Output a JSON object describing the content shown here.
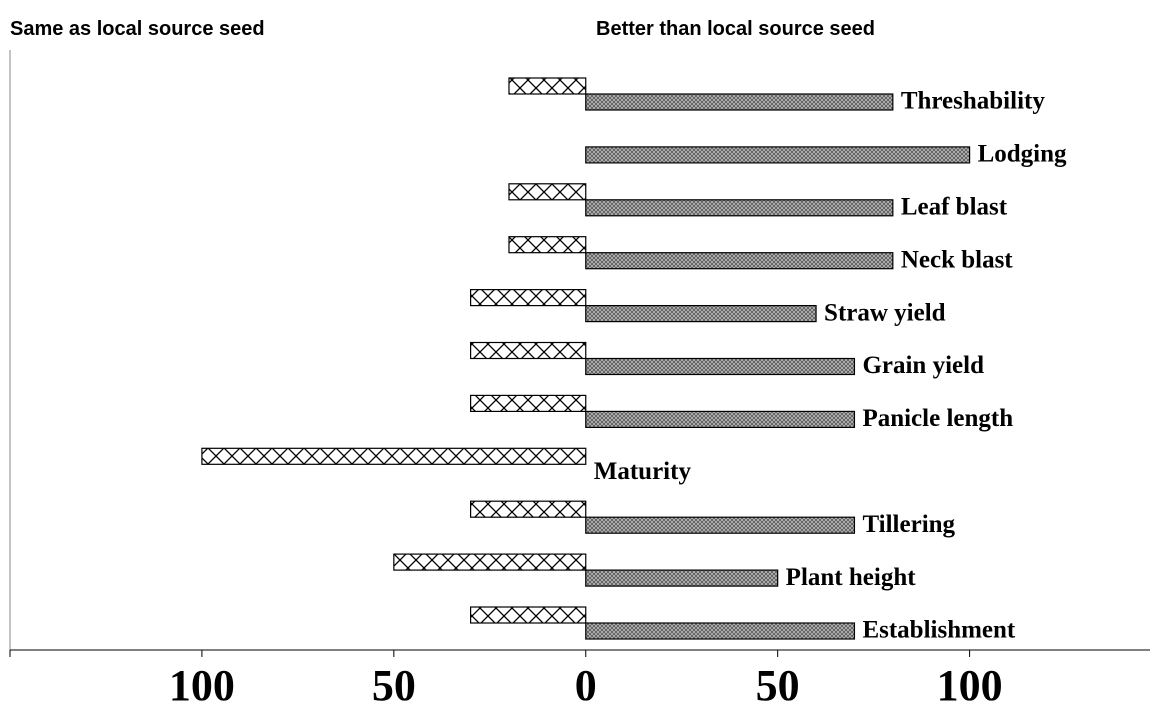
{
  "chart_data": {
    "type": "diverging_bar",
    "categories": [
      "Threshability",
      "Lodging",
      "Leaf blast",
      "Neck blast",
      "Straw yield",
      "Grain yield",
      "Panicle length",
      "Maturity",
      "Tillering",
      "Plant height",
      "Establishment"
    ],
    "series": [
      {
        "name": "Same as local source seed",
        "color": "#ffffff",
        "values": [
          -20,
          0,
          -20,
          -20,
          -30,
          -30,
          -30,
          -100,
          -30,
          -50,
          -30
        ]
      },
      {
        "name": "Better than local source seed",
        "color": "#999999",
        "values": [
          80,
          100,
          80,
          80,
          60,
          70,
          70,
          0,
          70,
          50,
          70
        ]
      }
    ],
    "xlim": [
      -150,
      147
    ],
    "xticks": [
      {
        "value": -100,
        "label": "100"
      },
      {
        "value": -50,
        "label": "50"
      },
      0,
      50,
      100
    ]
  }
}
